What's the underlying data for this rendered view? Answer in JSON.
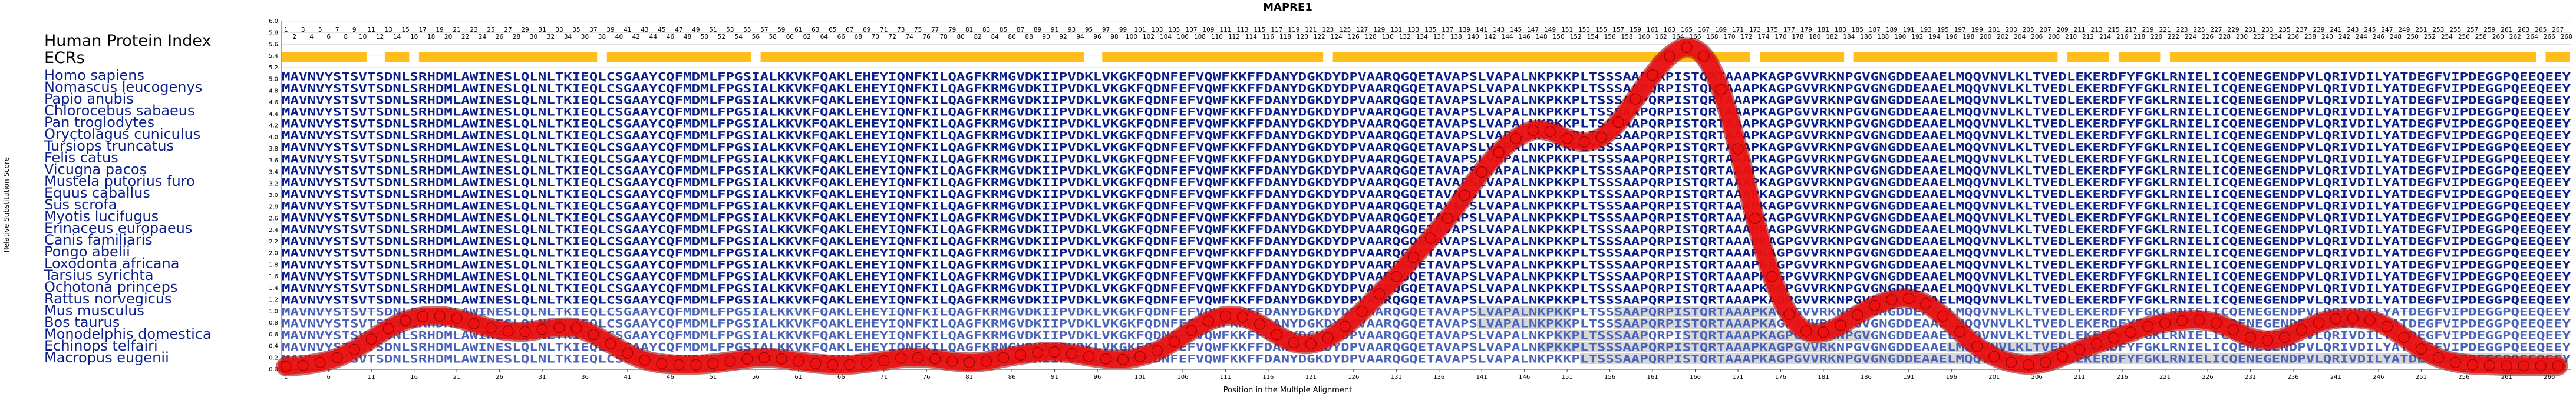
{
  "chart_data": {
    "type": "line",
    "title": "MAPRE1",
    "xlabel": "Position in the Multiple Alignment",
    "ylabel": "Relative Substitution Score",
    "xlim": [
      1,
      268
    ],
    "ylim": [
      0,
      6.0
    ],
    "y_ticks": [
      0,
      0.2,
      0.4,
      0.6,
      0.8,
      1.0,
      1.2,
      1.4,
      1.6,
      1.8,
      2.0,
      2.2,
      2.4,
      2.6,
      2.8,
      3.0,
      3.2,
      3.4,
      3.6,
      3.8,
      4.0,
      4.2,
      4.4,
      4.6,
      4.8,
      5.0,
      5.2,
      5.4,
      5.6,
      5.8,
      6.0
    ],
    "x_tick_step": 5,
    "index_label": "Human Protein Index",
    "ecr_label": "ECRs",
    "species": [
      "Homo sapiens",
      "Nomascus leucogenys",
      "Papio anubis",
      "Chlorocebus sabaeus",
      "Pan troglodytes",
      "Oryctolagus cuniculus",
      "Tursiops truncatus",
      "Felis catus",
      "Vicugna pacos",
      "Mustela putorius furo",
      "Equus caballus",
      "Sus scrofa",
      "Myotis lucifugus",
      "Erinaceus europaeus",
      "Canis familiaris",
      "Pongo abelii",
      "Loxodonta africana",
      "Tarsius syrichta",
      "Ochotona princeps",
      "Rattus norvegicus",
      "Mus musculus",
      "Bos taurus",
      "Monodelphis domestica",
      "Echinops telfairi",
      "Macropus eugenii"
    ],
    "sequence": "MAVNVYSTSVTSDNLSRHDMLAWINESLQLNLTKIEQLCSGAAYCQFMDMLFPGSIALKKVKFQAKLEHEYIQNFKILQAGFKRMGVDKIIPVDKLVKGKFQDNFEFVQWFKKFFDANYDGKDYDPVAARQGQETAVAPSLVAPALNKPKKPLTSSSAAPQRPISTQRTAAAPKAGPGVVRKNPGVGNGDDEAAELMQQVNVLKLTVEDLEKERDFYFGKLRNIELICQENEGENDPVLQRIVDILYATDEGFVIPDEGGPQEEQEEY",
    "ecrs": [
      [
        1,
        10
      ],
      [
        13,
        15
      ],
      [
        17,
        37
      ],
      [
        39,
        55
      ],
      [
        57,
        94
      ],
      [
        97,
        122
      ],
      [
        124,
        172
      ],
      [
        174,
        183
      ],
      [
        185,
        208
      ],
      [
        210,
        214
      ],
      [
        216,
        220
      ],
      [
        222,
        264
      ],
      [
        266,
        268
      ]
    ],
    "mask_rows": {
      "20": [
        [
          141,
          151
        ],
        [
          157,
          175
        ]
      ],
      "21": [
        [
          141,
          151
        ],
        [
          157,
          175
        ]
      ],
      "22": [
        [
          150,
          160
        ],
        [
          165,
          186
        ]
      ],
      "23": [
        [
          148,
          182
        ],
        [
          196,
          209
        ]
      ],
      "24": [
        [
          153,
          267
        ]
      ]
    },
    "series": [
      {
        "x": [
          1,
          3,
          5,
          7,
          9,
          11,
          13,
          15,
          17,
          19,
          21,
          23,
          25,
          27,
          29,
          31,
          33,
          35,
          37,
          39,
          41,
          43,
          45,
          47,
          49,
          51,
          53,
          55,
          57,
          59,
          61,
          63,
          65,
          67,
          69,
          71,
          73,
          75,
          77,
          79,
          81,
          83,
          85,
          87,
          89,
          91,
          93,
          95,
          97,
          99,
          101,
          103,
          105,
          107,
          109,
          111,
          113,
          115,
          117,
          119,
          121,
          123,
          125,
          127,
          129,
          131,
          133,
          135,
          137,
          139,
          141,
          143,
          145,
          147,
          149,
          151,
          153,
          155,
          157,
          159,
          161,
          163,
          165,
          167,
          169,
          171,
          173,
          175,
          177,
          179,
          181,
          183,
          185,
          187,
          189,
          191,
          193,
          195,
          197,
          199,
          201,
          203,
          205,
          207,
          209,
          211,
          213,
          215,
          217,
          219,
          221,
          223,
          225,
          227,
          229,
          231,
          233,
          235,
          237,
          239,
          241,
          243,
          245,
          247,
          249,
          251,
          253,
          255,
          257,
          259,
          261,
          263,
          265,
          267
        ],
        "y": [
          0.05,
          0.07,
          0.12,
          0.2,
          0.34,
          0.52,
          0.7,
          0.84,
          0.91,
          0.92,
          0.88,
          0.79,
          0.71,
          0.66,
          0.65,
          0.69,
          0.72,
          0.71,
          0.6,
          0.44,
          0.28,
          0.16,
          0.1,
          0.08,
          0.08,
          0.1,
          0.14,
          0.18,
          0.2,
          0.18,
          0.14,
          0.1,
          0.08,
          0.08,
          0.11,
          0.15,
          0.19,
          0.2,
          0.18,
          0.14,
          0.12,
          0.14,
          0.2,
          0.25,
          0.29,
          0.3,
          0.27,
          0.22,
          0.18,
          0.17,
          0.22,
          0.32,
          0.48,
          0.67,
          0.83,
          0.92,
          0.9,
          0.78,
          0.6,
          0.46,
          0.44,
          0.54,
          0.74,
          1.0,
          1.3,
          1.6,
          1.93,
          2.26,
          2.6,
          3.0,
          3.4,
          3.74,
          3.98,
          4.12,
          4.1,
          3.98,
          3.92,
          4.0,
          4.26,
          4.66,
          5.07,
          5.4,
          5.55,
          5.4,
          4.82,
          3.8,
          2.6,
          1.6,
          0.95,
          0.66,
          0.64,
          0.76,
          0.94,
          1.1,
          1.2,
          1.22,
          1.13,
          0.92,
          0.65,
          0.4,
          0.22,
          0.12,
          0.08,
          0.12,
          0.22,
          0.34,
          0.44,
          0.54,
          0.64,
          0.74,
          0.8,
          0.84,
          0.85,
          0.8,
          0.68,
          0.55,
          0.5,
          0.55,
          0.68,
          0.8,
          0.87,
          0.88,
          0.85,
          0.74,
          0.55,
          0.35,
          0.2,
          0.12,
          0.08,
          0.07,
          0.06,
          0.06,
          0.06,
          0.06
        ]
      }
    ],
    "colors": {
      "residue": "#0b1f8a",
      "residue_faded": "#4a63b8",
      "ecr_bar": "#ffbe1a",
      "curve": "#ee1111",
      "curve_edge": "#8b0000",
      "grid": "#d0d0d0",
      "mask": "#d7d7d7"
    }
  }
}
